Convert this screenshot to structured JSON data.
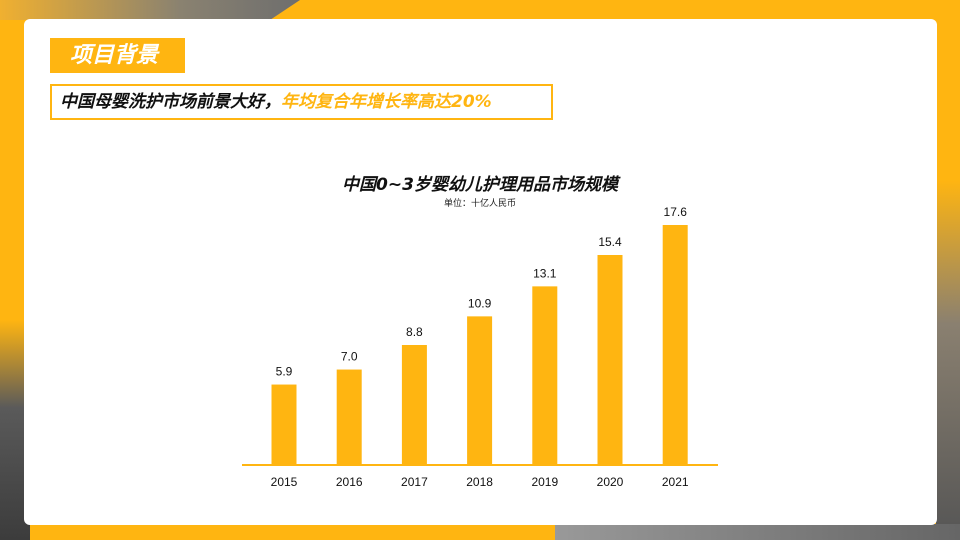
{
  "header": {
    "tag": "项目背景",
    "subtitle_main": "中国母婴洗护市场前景大好，",
    "subtitle_highlight": "年均复合年增长率高达20%"
  },
  "colors": {
    "accent": "#FFB511",
    "text": "#111111"
  },
  "chart_data": {
    "type": "bar",
    "title": "中国0~3岁婴幼儿护理用品市场规模",
    "subtitle": "单位：十亿人民币",
    "categories": [
      "2015",
      "2016",
      "2017",
      "2018",
      "2019",
      "2020",
      "2021"
    ],
    "values": [
      5.9,
      7.0,
      8.8,
      10.9,
      13.1,
      15.4,
      17.6
    ],
    "value_labels": [
      "5.9",
      "7.0",
      "8.8",
      "10.9",
      "13.1",
      "15.4",
      "17.6"
    ],
    "ylim": [
      0,
      17.6
    ],
    "grid": false,
    "bar_color": "#FFB511"
  }
}
